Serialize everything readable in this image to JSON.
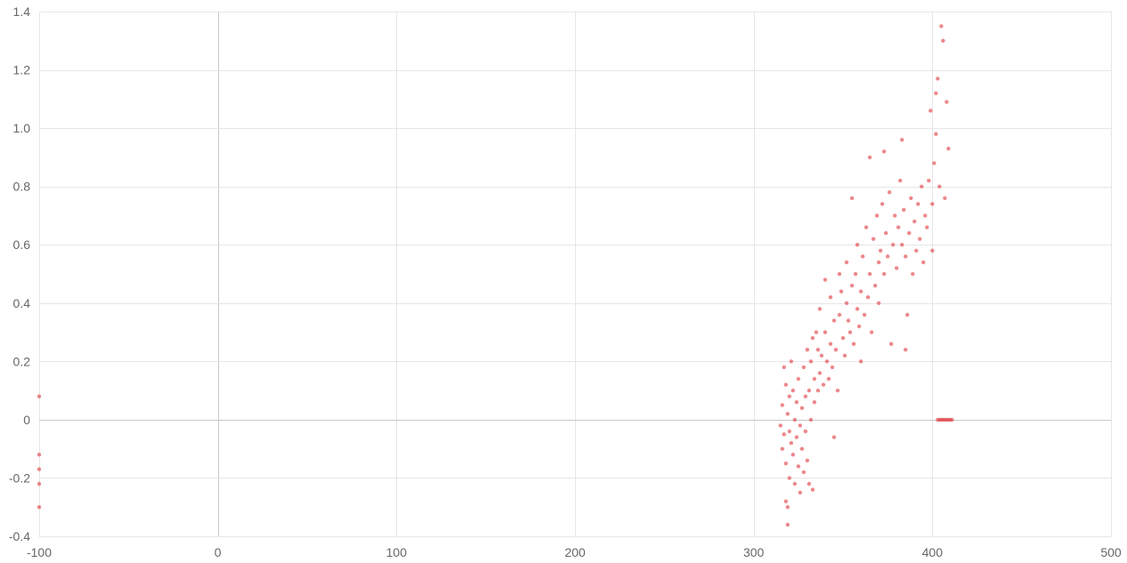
{
  "chart_data": {
    "type": "scatter",
    "title": "",
    "xlabel": "",
    "ylabel": "",
    "xlim": [
      -100,
      500
    ],
    "ylim": [
      -0.4,
      1.4
    ],
    "x_ticks": [
      -100,
      0,
      100,
      200,
      300,
      400,
      500
    ],
    "y_ticks": [
      -0.4,
      -0.2,
      0,
      0.2,
      0.4,
      0.6,
      0.8,
      1.0,
      1.2,
      1.4
    ],
    "x_tick_labels": [
      "-100",
      "0",
      "100",
      "200",
      "300",
      "400",
      "500"
    ],
    "y_tick_labels": [
      "-0.4",
      "-0.2",
      "0",
      "0.2",
      "0.4",
      "0.6",
      "0.8",
      "1.0",
      "1.2",
      "1.4"
    ],
    "grid": true,
    "legend": "none",
    "point_color": "#e0393e",
    "series": [
      {
        "points": [
          [
            -100,
            0.08
          ],
          [
            -100,
            -0.12
          ],
          [
            -100,
            -0.17
          ],
          [
            -100,
            -0.22
          ],
          [
            -100,
            -0.3
          ],
          [
            315,
            -0.02
          ],
          [
            316,
            0.05
          ],
          [
            316,
            -0.1
          ],
          [
            317,
            0.18
          ],
          [
            317,
            -0.05
          ],
          [
            318,
            0.12
          ],
          [
            318,
            -0.15
          ],
          [
            318,
            -0.28
          ],
          [
            319,
            0.02
          ],
          [
            319,
            -0.3
          ],
          [
            319,
            -0.36
          ],
          [
            320,
            0.08
          ],
          [
            320,
            -0.04
          ],
          [
            320,
            -0.2
          ],
          [
            321,
            0.2
          ],
          [
            321,
            -0.08
          ],
          [
            322,
            0.1
          ],
          [
            322,
            -0.12
          ],
          [
            323,
            0.0
          ],
          [
            323,
            -0.22
          ],
          [
            324,
            0.06
          ],
          [
            324,
            -0.06
          ],
          [
            325,
            0.14
          ],
          [
            325,
            -0.16
          ],
          [
            326,
            -0.02
          ],
          [
            326,
            -0.25
          ],
          [
            327,
            0.04
          ],
          [
            327,
            -0.1
          ],
          [
            328,
            0.18
          ],
          [
            328,
            -0.18
          ],
          [
            329,
            0.08
          ],
          [
            329,
            -0.04
          ],
          [
            330,
            0.24
          ],
          [
            330,
            -0.14
          ],
          [
            331,
            0.1
          ],
          [
            331,
            -0.22
          ],
          [
            332,
            0.2
          ],
          [
            332,
            0.0
          ],
          [
            333,
            0.28
          ],
          [
            333,
            -0.24
          ],
          [
            334,
            0.14
          ],
          [
            334,
            0.06
          ],
          [
            335,
            0.3
          ],
          [
            336,
            0.1
          ],
          [
            336,
            0.24
          ],
          [
            337,
            0.38
          ],
          [
            337,
            0.16
          ],
          [
            338,
            0.22
          ],
          [
            339,
            0.12
          ],
          [
            340,
            0.3
          ],
          [
            340,
            0.48
          ],
          [
            341,
            0.2
          ],
          [
            342,
            0.14
          ],
          [
            343,
            0.26
          ],
          [
            343,
            0.42
          ],
          [
            344,
            0.18
          ],
          [
            345,
            0.34
          ],
          [
            345,
            -0.06
          ],
          [
            346,
            0.24
          ],
          [
            347,
            0.1
          ],
          [
            348,
            0.36
          ],
          [
            348,
            0.5
          ],
          [
            349,
            0.44
          ],
          [
            350,
            0.28
          ],
          [
            351,
            0.22
          ],
          [
            352,
            0.4
          ],
          [
            352,
            0.54
          ],
          [
            353,
            0.34
          ],
          [
            354,
            0.3
          ],
          [
            355,
            0.46
          ],
          [
            355,
            0.76
          ],
          [
            356,
            0.26
          ],
          [
            357,
            0.5
          ],
          [
            358,
            0.38
          ],
          [
            358,
            0.6
          ],
          [
            359,
            0.32
          ],
          [
            360,
            0.44
          ],
          [
            360,
            0.2
          ],
          [
            361,
            0.56
          ],
          [
            362,
            0.36
          ],
          [
            363,
            0.66
          ],
          [
            364,
            0.42
          ],
          [
            365,
            0.5
          ],
          [
            365,
            0.9
          ],
          [
            366,
            0.3
          ],
          [
            367,
            0.62
          ],
          [
            368,
            0.46
          ],
          [
            369,
            0.7
          ],
          [
            370,
            0.54
          ],
          [
            370,
            0.4
          ],
          [
            371,
            0.58
          ],
          [
            372,
            0.74
          ],
          [
            373,
            0.5
          ],
          [
            373,
            0.92
          ],
          [
            374,
            0.64
          ],
          [
            375,
            0.56
          ],
          [
            376,
            0.78
          ],
          [
            377,
            0.26
          ],
          [
            378,
            0.6
          ],
          [
            379,
            0.7
          ],
          [
            380,
            0.52
          ],
          [
            381,
            0.66
          ],
          [
            382,
            0.82
          ],
          [
            383,
            0.6
          ],
          [
            383,
            0.96
          ],
          [
            384,
            0.72
          ],
          [
            385,
            0.56
          ],
          [
            385,
            0.24
          ],
          [
            386,
            0.36
          ],
          [
            387,
            0.64
          ],
          [
            388,
            0.76
          ],
          [
            389,
            0.5
          ],
          [
            390,
            0.68
          ],
          [
            391,
            0.58
          ],
          [
            392,
            0.74
          ],
          [
            393,
            0.62
          ],
          [
            394,
            0.8
          ],
          [
            395,
            0.54
          ],
          [
            396,
            0.7
          ],
          [
            397,
            0.66
          ],
          [
            398,
            0.82
          ],
          [
            399,
            1.06
          ],
          [
            400,
            0.74
          ],
          [
            400,
            0.58
          ],
          [
            401,
            0.88
          ],
          [
            402,
            0.98
          ],
          [
            402,
            1.12
          ],
          [
            403,
            1.17
          ],
          [
            404,
            0.8
          ],
          [
            405,
            1.35
          ],
          [
            406,
            1.3
          ],
          [
            407,
            0.76
          ],
          [
            408,
            1.09
          ],
          [
            409,
            0.93
          ],
          [
            403,
            0.0
          ],
          [
            404,
            0.0
          ],
          [
            405,
            0.0
          ],
          [
            406,
            0.0
          ],
          [
            407,
            0.0
          ],
          [
            408,
            0.0
          ],
          [
            409,
            0.0
          ],
          [
            410,
            0.0
          ],
          [
            411,
            0.0
          ]
        ]
      }
    ]
  }
}
